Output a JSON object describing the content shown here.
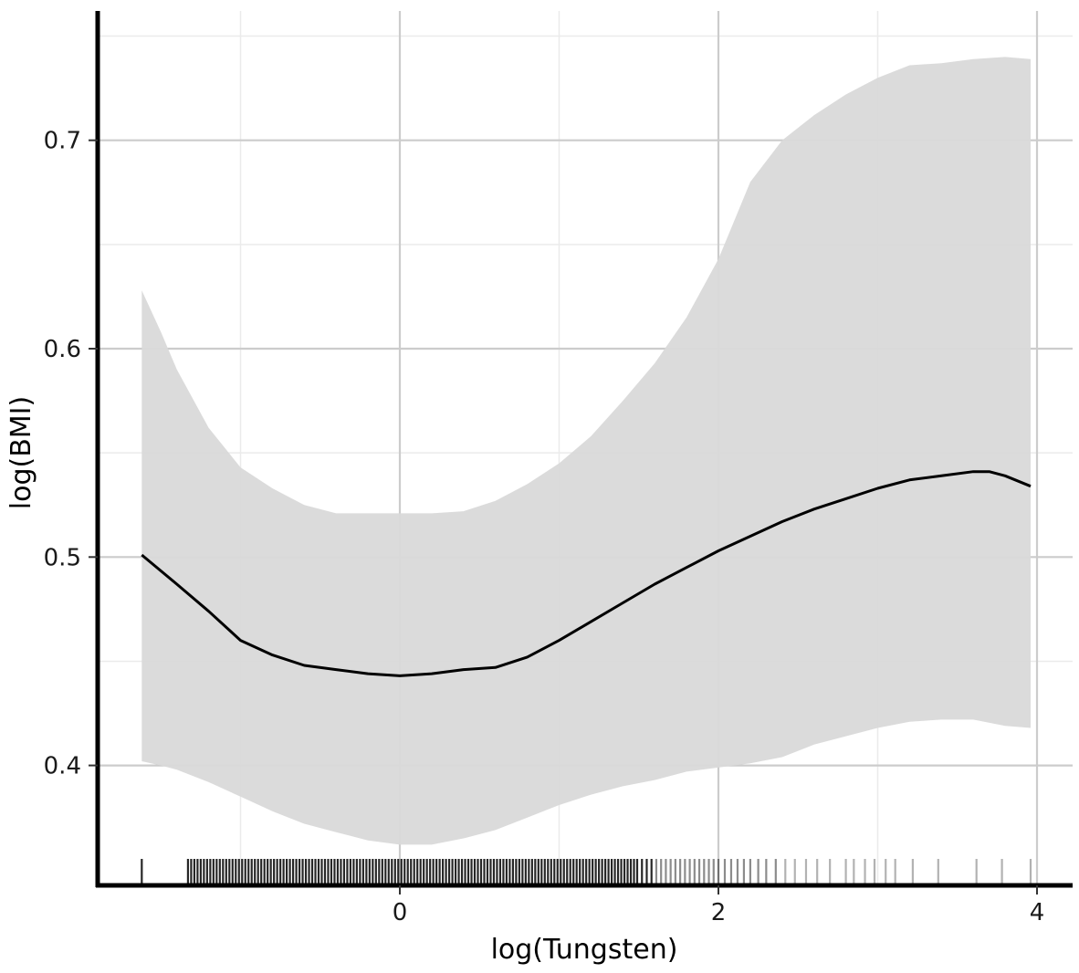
{
  "chart_data": {
    "type": "line",
    "xlabel": "log(Tungsten)",
    "ylabel": "log(BMI)",
    "xlim": [
      -1.95,
      4.2
    ],
    "ylim": [
      0.35,
      0.756
    ],
    "grid": true,
    "x_ticks": [
      0,
      2,
      4
    ],
    "x_tick_labels": [
      "0",
      "2",
      "4"
    ],
    "y_ticks": [
      0.4,
      0.5,
      0.6,
      0.7
    ],
    "y_tick_labels": [
      "0.4",
      "0.5",
      "0.6",
      "0.7"
    ],
    "colors": {
      "line": "#000000",
      "band": "#d9d9d9",
      "grid_major": "#cccccc",
      "grid_minor": "#ebebeb"
    },
    "series": [
      {
        "type": "line",
        "x": [
          -1.62,
          -1.4,
          -1.2,
          -1.0,
          -0.8,
          -0.6,
          -0.4,
          -0.2,
          0.0,
          0.2,
          0.4,
          0.6,
          0.8,
          1.0,
          1.2,
          1.4,
          1.6,
          1.8,
          2.0,
          2.2,
          2.4,
          2.6,
          2.8,
          3.0,
          3.2,
          3.4,
          3.6,
          3.7,
          3.8,
          3.96
        ],
        "y": [
          0.501,
          0.487,
          0.474,
          0.46,
          0.453,
          0.448,
          0.446,
          0.444,
          0.443,
          0.444,
          0.446,
          0.447,
          0.452,
          0.46,
          0.469,
          0.478,
          0.487,
          0.495,
          0.503,
          0.51,
          0.517,
          0.523,
          0.528,
          0.533,
          0.537,
          0.539,
          0.541,
          0.541,
          0.539,
          0.534
        ]
      },
      {
        "type": "ribbon",
        "x": [
          -1.62,
          -1.5,
          -1.4,
          -1.2,
          -1.0,
          -0.8,
          -0.6,
          -0.4,
          -0.2,
          0.0,
          0.2,
          0.4,
          0.6,
          0.8,
          1.0,
          1.2,
          1.4,
          1.6,
          1.8,
          2.0,
          2.2,
          2.4,
          2.6,
          2.8,
          3.0,
          3.2,
          3.4,
          3.6,
          3.8,
          3.96
        ],
        "lower": [
          0.402,
          0.4,
          0.398,
          0.392,
          0.385,
          0.378,
          0.372,
          0.368,
          0.364,
          0.362,
          0.362,
          0.365,
          0.369,
          0.375,
          0.381,
          0.386,
          0.39,
          0.393,
          0.397,
          0.399,
          0.401,
          0.404,
          0.41,
          0.414,
          0.418,
          0.421,
          0.422,
          0.422,
          0.419,
          0.418
        ],
        "upper": [
          0.628,
          0.608,
          0.59,
          0.562,
          0.543,
          0.533,
          0.525,
          0.521,
          0.521,
          0.521,
          0.521,
          0.522,
          0.527,
          0.535,
          0.545,
          0.558,
          0.575,
          0.593,
          0.615,
          0.643,
          0.68,
          0.7,
          0.712,
          0.722,
          0.73,
          0.736,
          0.737,
          0.739,
          0.74,
          0.739
        ]
      }
    ],
    "rug_x": [
      -1.62,
      -1.33,
      -1.31,
      -1.29,
      -1.27,
      -1.25,
      -1.23,
      -1.21,
      -1.19,
      -1.17,
      -1.15,
      -1.13,
      -1.11,
      -1.09,
      -1.07,
      -1.05,
      -1.03,
      -1.01,
      -0.99,
      -0.97,
      -0.95,
      -0.93,
      -0.91,
      -0.89,
      -0.87,
      -0.85,
      -0.83,
      -0.81,
      -0.79,
      -0.77,
      -0.75,
      -0.73,
      -0.71,
      -0.69,
      -0.67,
      -0.65,
      -0.63,
      -0.61,
      -0.59,
      -0.57,
      -0.55,
      -0.53,
      -0.51,
      -0.49,
      -0.47,
      -0.45,
      -0.43,
      -0.41,
      -0.39,
      -0.37,
      -0.35,
      -0.33,
      -0.31,
      -0.29,
      -0.27,
      -0.25,
      -0.23,
      -0.21,
      -0.19,
      -0.17,
      -0.15,
      -0.13,
      -0.11,
      -0.09,
      -0.07,
      -0.05,
      -0.03,
      -0.01,
      0.01,
      0.03,
      0.05,
      0.07,
      0.09,
      0.11,
      0.13,
      0.15,
      0.17,
      0.19,
      0.21,
      0.23,
      0.25,
      0.27,
      0.29,
      0.31,
      0.33,
      0.35,
      0.37,
      0.39,
      0.41,
      0.43,
      0.45,
      0.47,
      0.49,
      0.51,
      0.53,
      0.55,
      0.57,
      0.59,
      0.61,
      0.63,
      0.65,
      0.67,
      0.69,
      0.71,
      0.73,
      0.75,
      0.77,
      0.79,
      0.81,
      0.83,
      0.85,
      0.87,
      0.89,
      0.91,
      0.93,
      0.95,
      0.97,
      0.99,
      1.01,
      1.03,
      1.05,
      1.07,
      1.09,
      1.11,
      1.13,
      1.15,
      1.17,
      1.19,
      1.21,
      1.23,
      1.25,
      1.27,
      1.29,
      1.31,
      1.33,
      1.35,
      1.37,
      1.39,
      1.41,
      1.43,
      1.45,
      1.47,
      1.49,
      1.52,
      1.55,
      1.58,
      1.61,
      1.64,
      1.67,
      1.7,
      1.73,
      1.76,
      1.79,
      1.82,
      1.85,
      1.88,
      1.91,
      1.94,
      1.97,
      2.0,
      2.04,
      2.08,
      2.12,
      2.16,
      2.2,
      2.25,
      2.3,
      2.36,
      2.42,
      2.48,
      2.55,
      2.62,
      2.7,
      2.8,
      2.85,
      2.92,
      2.98,
      3.05,
      3.11,
      3.22,
      3.38,
      3.62,
      3.78,
      3.96
    ]
  }
}
